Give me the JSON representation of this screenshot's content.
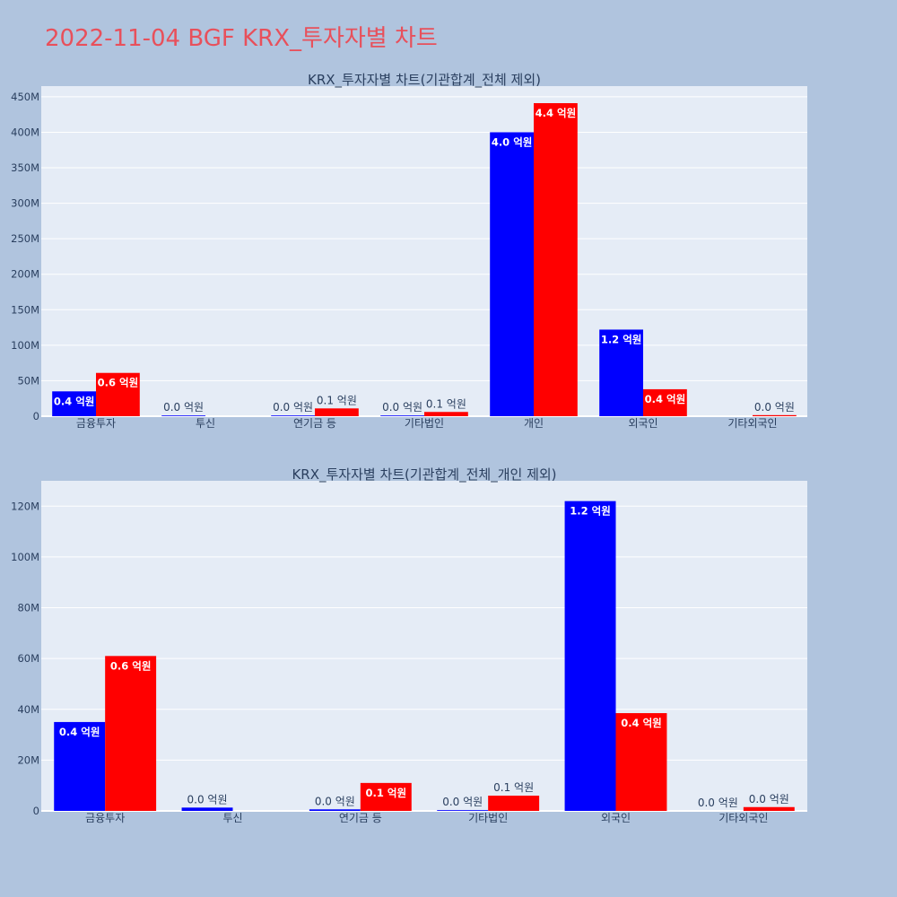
{
  "page": {
    "title": "2022-11-04 BGF KRX_투자자별 차트"
  },
  "colors": {
    "buy": "#0000ff",
    "sell": "#ff0000",
    "plot_bg": "#e5ecf6",
    "page_bg": "#b0c4de",
    "title": "#e8505b"
  },
  "chart_data": [
    {
      "type": "bar",
      "title": "KRX_투자자별 차트(기관합계_전체 제외)",
      "categories": [
        "금융투자",
        "투신",
        "연기금 등",
        "기타법인",
        "개인",
        "외국인",
        "기타외국인"
      ],
      "series": [
        {
          "values": [
            35000000,
            1000000,
            1000000,
            1000000,
            400000000,
            122000000,
            0
          ],
          "labels": [
            "0.4 억원",
            "0.0 억원",
            "0.0 억원",
            "0.0 억원",
            "4.0 억원",
            "1.2 억원",
            ""
          ]
        },
        {
          "values": [
            61000000,
            0,
            11000000,
            6000000,
            441000000,
            38000000,
            1500000
          ],
          "labels": [
            "0.6 억원",
            "",
            "0.1 억원",
            "0.1 억원",
            "4.4 억원",
            "0.4 억원",
            "0.0 억원"
          ]
        }
      ],
      "ylim": [
        0,
        465000000
      ],
      "yticks": [
        0,
        50000000,
        100000000,
        150000000,
        200000000,
        250000000,
        300000000,
        350000000,
        400000000,
        450000000
      ],
      "ytick_labels": [
        "0",
        "50M",
        "100M",
        "150M",
        "200M",
        "250M",
        "300M",
        "350M",
        "400M",
        "450M"
      ],
      "grid": true
    },
    {
      "type": "bar",
      "title": "KRX_투자자별 차트(기관합계_전체_개인 제외)",
      "categories": [
        "금융투자",
        "투신",
        "연기금 등",
        "기타법인",
        "외국인",
        "기타외국인"
      ],
      "series": [
        {
          "values": [
            35000000,
            1300000,
            600000,
            300000,
            122000000,
            0
          ],
          "labels": [
            "0.4 억원",
            "0.0 억원",
            "0.0 억원",
            "0.0 억원",
            "1.2 억원",
            "0.0 억원"
          ]
        },
        {
          "values": [
            61000000,
            0,
            11000000,
            6000000,
            38500000,
            1500000
          ],
          "labels": [
            "0.6 억원",
            "",
            "0.1 억원",
            "0.1 억원",
            "0.4 억원",
            "0.0 억원"
          ]
        }
      ],
      "ylim": [
        0,
        130000000
      ],
      "yticks": [
        0,
        20000000,
        40000000,
        60000000,
        80000000,
        100000000,
        120000000
      ],
      "ytick_labels": [
        "0",
        "20M",
        "40M",
        "60M",
        "80M",
        "100M",
        "120M"
      ],
      "grid": true
    }
  ]
}
